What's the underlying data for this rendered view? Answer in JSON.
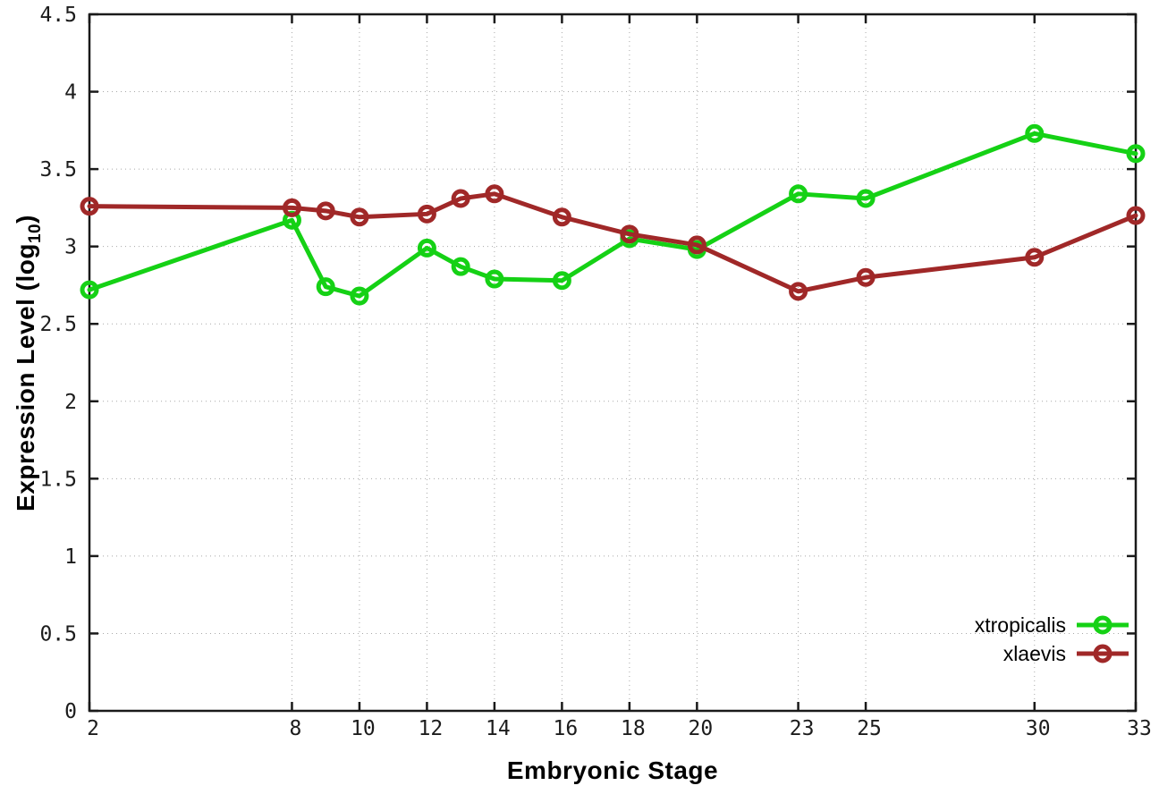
{
  "labels": {
    "x_title": "Embryonic Stage",
    "y_title_main": "Expression Level (log",
    "y_title_sub": "10",
    "y_title_close": ")"
  },
  "chart_data": {
    "type": "line",
    "title": "",
    "xlabel": "Embryonic Stage",
    "ylabel": "Expression Level (log10)",
    "xlim": [
      2,
      33
    ],
    "ylim": [
      0,
      4.5
    ],
    "grid": true,
    "legend_position": "bottom-right",
    "marker": "open-circle",
    "grid_color": "#a8a8a8",
    "axis_color": "#1a1a1a",
    "x": [
      2,
      8,
      9,
      10,
      12,
      13,
      14,
      16,
      18,
      20,
      23,
      25,
      30,
      33
    ],
    "xticks": [
      {
        "v": 2,
        "label": "2"
      },
      {
        "v": 8,
        "label": "8"
      },
      {
        "v": 10,
        "label": "10"
      },
      {
        "v": 12,
        "label": "12"
      },
      {
        "v": 14,
        "label": "14"
      },
      {
        "v": 16,
        "label": "16"
      },
      {
        "v": 18,
        "label": "18"
      },
      {
        "v": 20,
        "label": "20"
      },
      {
        "v": 23,
        "label": "23"
      },
      {
        "v": 25,
        "label": "25"
      },
      {
        "v": 30,
        "label": "30"
      },
      {
        "v": 33,
        "label": "33"
      }
    ],
    "yticks": [
      {
        "v": 0,
        "label": "0"
      },
      {
        "v": 0.5,
        "label": "0.5"
      },
      {
        "v": 1,
        "label": "1"
      },
      {
        "v": 1.5,
        "label": "1.5"
      },
      {
        "v": 2,
        "label": "2"
      },
      {
        "v": 2.5,
        "label": "2.5"
      },
      {
        "v": 3,
        "label": "3"
      },
      {
        "v": 3.5,
        "label": "3.5"
      },
      {
        "v": 4,
        "label": "4"
      },
      {
        "v": 4.5,
        "label": "4.5"
      }
    ],
    "series": [
      {
        "name": "xtropicalis",
        "color": "#15d115",
        "values": [
          2.72,
          3.17,
          2.74,
          2.68,
          2.99,
          2.87,
          2.79,
          2.78,
          3.05,
          2.98,
          3.34,
          3.31,
          3.73,
          3.6
        ]
      },
      {
        "name": "xlaevis",
        "color": "#a02828",
        "values": [
          3.26,
          3.25,
          3.23,
          3.19,
          3.21,
          3.31,
          3.34,
          3.19,
          3.08,
          3.01,
          2.71,
          2.8,
          2.93,
          3.2
        ]
      }
    ]
  }
}
